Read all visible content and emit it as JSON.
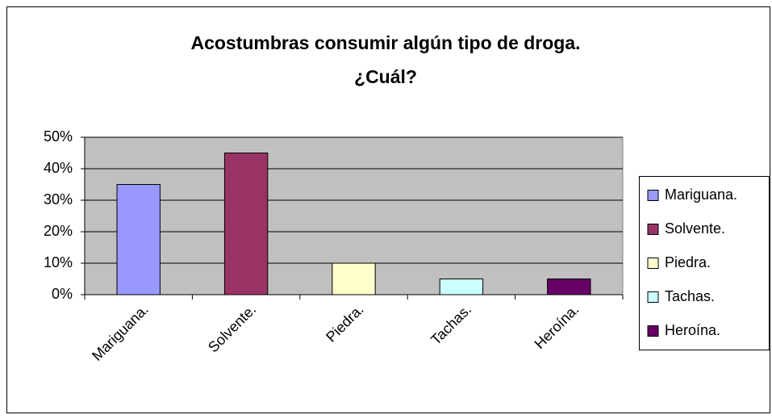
{
  "chart_data": {
    "type": "bar",
    "title": [
      "Acostumbras consumir algún tipo de droga.",
      "¿Cuál?"
    ],
    "categories": [
      "Mariguana.",
      "Solvente.",
      "Piedra.",
      "Tachas.",
      "Heroína."
    ],
    "values": [
      35,
      45,
      10,
      5,
      5
    ],
    "colors": [
      "#9999ff",
      "#993366",
      "#ffffcc",
      "#ccffff",
      "#660066"
    ],
    "ylim": [
      0,
      50
    ],
    "yticks": [
      {
        "value": 0,
        "label": "0%"
      },
      {
        "value": 10,
        "label": "10%"
      },
      {
        "value": 20,
        "label": "20%"
      },
      {
        "value": 30,
        "label": "30%"
      },
      {
        "value": 40,
        "label": "40%"
      },
      {
        "value": 50,
        "label": "50%"
      }
    ],
    "grid": true,
    "legend": "right"
  }
}
